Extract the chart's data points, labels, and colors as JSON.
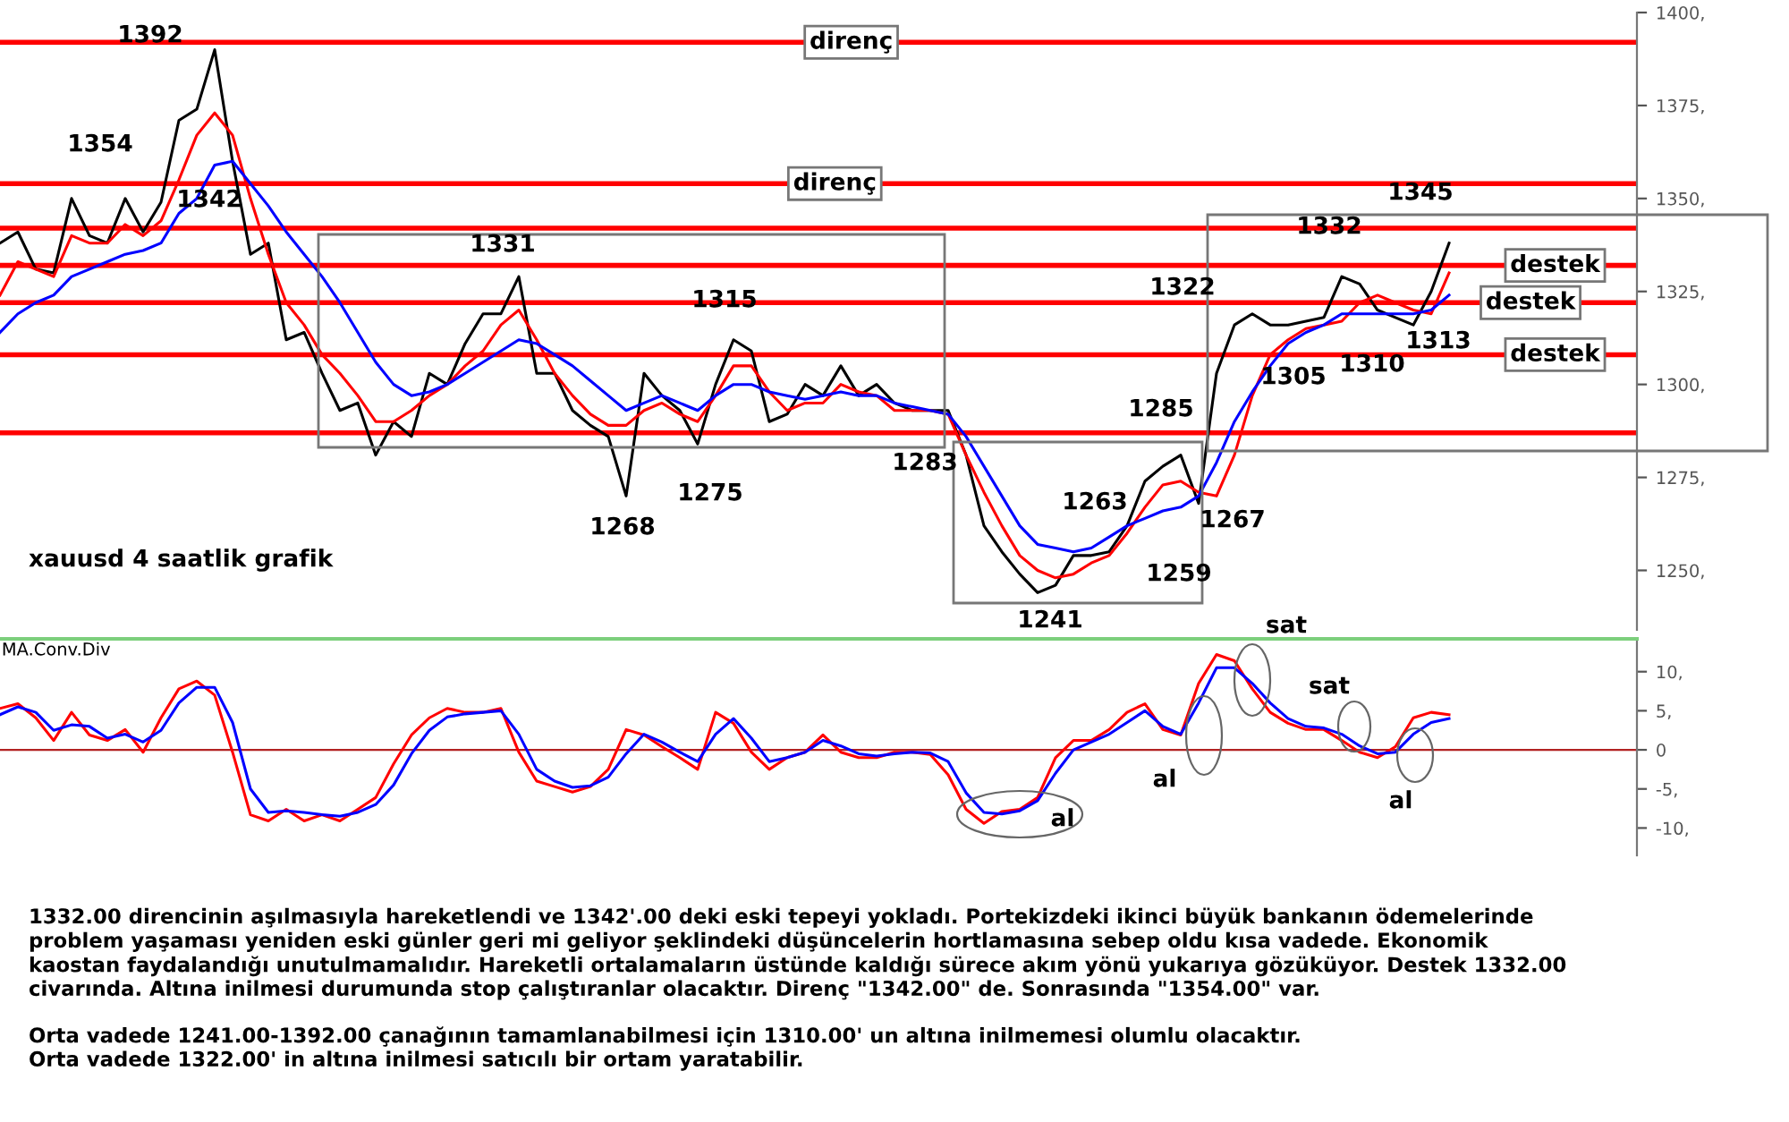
{
  "chart_data": [
    {
      "type": "line",
      "categories": [
        null,
        null,
        null,
        null,
        null,
        null,
        null,
        null,
        null,
        null,
        null,
        null,
        null,
        null,
        null,
        null,
        null,
        null,
        null,
        null,
        null,
        null,
        null,
        null,
        null,
        null,
        null,
        null,
        null,
        null,
        null,
        null,
        null,
        null,
        null,
        null,
        null,
        null,
        null,
        null,
        null,
        null,
        null,
        null,
        null,
        null,
        null,
        null,
        null,
        null,
        null,
        null,
        null,
        null,
        null,
        null,
        null,
        null,
        null,
        null,
        null,
        null,
        null,
        null,
        null,
        null,
        null,
        null,
        null,
        null,
        null,
        null,
        null,
        null,
        null,
        null,
        null,
        null,
        null,
        null,
        null,
        null,
        null,
        null,
        null,
        null,
        null,
        null,
        null,
        null,
        null,
        null
      ],
      "series": [
        {
          "color": "#000000",
          "values": [
            1338,
            1341,
            1331,
            1330,
            1350,
            1340,
            1338,
            1350,
            1341,
            1349,
            1371,
            1374,
            1390,
            1360,
            1335,
            1338,
            1312,
            1314,
            1303,
            1293,
            1295,
            1281,
            1290,
            1286,
            1303,
            1300,
            1311,
            1319,
            1319,
            1329,
            1303,
            1303,
            1293,
            1289,
            1286,
            1270,
            1303,
            1297,
            1293,
            1284,
            1300,
            1312,
            1309,
            1290,
            1292,
            1300,
            1297,
            1305,
            1297,
            1300,
            1295,
            1293,
            1293,
            1293,
            1281,
            1262,
            1255,
            1249,
            1244,
            1246,
            1254,
            1254,
            1255,
            1262,
            1274,
            1278,
            1281,
            1268,
            1303,
            1316,
            1319,
            1316,
            1316,
            1317,
            1318,
            1329,
            1327,
            1320,
            1318,
            1316,
            1325,
            1338,
            null,
            null,
            null,
            null,
            null,
            null,
            null,
            null,
            null,
            null
          ]
        },
        {
          "color": "#ff0000",
          "values": [
            1324,
            1333,
            1331,
            1329,
            1340,
            1338,
            1338,
            1343,
            1340,
            1344,
            1355,
            1367,
            1373,
            1367,
            1350,
            1335,
            1322,
            1316,
            1308,
            1303,
            1297,
            1290,
            1290,
            1293,
            1297,
            1300,
            1305,
            1309,
            1316,
            1320,
            1312,
            1303,
            1297,
            1292,
            1289,
            1289,
            1293,
            1295,
            1292,
            1290,
            1297,
            1305,
            1305,
            1298,
            1293,
            1295,
            1295,
            1300,
            1298,
            1297,
            1293,
            1293,
            1293,
            1292,
            1281,
            1271,
            1262,
            1254,
            1250,
            1248,
            1249,
            1252,
            1254,
            1260,
            1267,
            1273,
            1274,
            1271,
            1270,
            1281,
            1297,
            1308,
            1312,
            1315,
            1316,
            1317,
            1322,
            1324,
            1322,
            1320,
            1319,
            1330,
            null,
            null,
            null,
            null,
            null,
            null,
            null,
            null,
            null,
            null
          ]
        },
        {
          "color": "#0000ff",
          "values": [
            1314,
            1319,
            1322,
            1324,
            1329,
            1331,
            1333,
            1335,
            1336,
            1338,
            1346,
            1350,
            1359,
            1360,
            1354,
            1348,
            1341,
            1335,
            1329,
            1322,
            1314,
            1306,
            1300,
            1297,
            1298,
            1300,
            1303,
            1306,
            1309,
            1312,
            1311,
            1308,
            1305,
            1301,
            1297,
            1293,
            1295,
            1297,
            1295,
            1293,
            1297,
            1300,
            1300,
            1298,
            1297,
            1296,
            1297,
            1298,
            1297,
            1297,
            1295,
            1294,
            1293,
            1292,
            1286,
            1278,
            1270,
            1262,
            1257,
            1256,
            1255,
            1256,
            1259,
            1262,
            1264,
            1266,
            1267,
            1270,
            1279,
            1290,
            1298,
            1305,
            1311,
            1314,
            1316,
            1319,
            1319,
            1319,
            1319,
            1319,
            1320,
            1324,
            null,
            null,
            null,
            null,
            null,
            null,
            null,
            null,
            null,
            null
          ]
        }
      ],
      "ylim": [
        1234,
        1400
      ],
      "yticks": [
        {
          "value": 1250,
          "label": "1250,"
        },
        {
          "value": 1275,
          "label": "1275,"
        },
        {
          "value": 1300,
          "label": "1300,"
        },
        {
          "value": 1325,
          "label": "1325,"
        },
        {
          "value": 1350,
          "label": "1350,"
        },
        {
          "value": 1375,
          "label": "1375,"
        },
        {
          "value": 1400,
          "label": "1400,"
        }
      ],
      "tick_labels": "y",
      "grid": false,
      "ref_lines": [
        {
          "axis": "y",
          "value": 1392,
          "label": "direnç",
          "color": "#ff0000"
        },
        {
          "axis": "y",
          "value": 1354,
          "label": "direnç",
          "color": "#ff0000"
        },
        {
          "axis": "y",
          "value": 1342,
          "color": "#ff0000"
        },
        {
          "axis": "y",
          "value": 1332,
          "label": "destek",
          "color": "#ff0000"
        },
        {
          "axis": "y",
          "value": 1322,
          "label": "destek",
          "color": "#ff0000"
        },
        {
          "axis": "y",
          "value": 1308,
          "label": "destek",
          "color": "#ff0000"
        },
        {
          "axis": "y",
          "value": 1287,
          "color": "#ff0000"
        }
      ],
      "annotations": [
        "1392",
        "1354",
        "1342",
        "1331",
        "1315",
        "1268",
        "1275",
        "1283",
        "1241",
        "1263",
        "1285",
        "1259",
        "1267",
        "1322",
        "1332",
        "1305",
        "1310",
        "1313",
        "1345",
        "xauusd 4 saatlik grafik",
        "1332.00 direncinin aşılmasıyla hareketlendi ve 1342'.00 deki eski tepeyi yokladı. Portekizdeki ikinci büyük bankanın ödemelerinde\nproblem yaşaması yeniden eski günler geri mi geliyor şeklindeki düşüncelerin hortlamasına sebep oldu kısa vadede. Ekonomik\nkaostan faydalandığı unutulmamalıdır. Hareketli ortalamaların üstünde kaldığı sürece akım yönü yukarıya gözüküyor. Destek 1332.00\ncivarında. Altına inilmesi durumunda stop çalıştıranlar olacaktır. Direnç \"1342.00\" de. Sonrasında \"1354.00\" var.",
        "Orta vadede 1241.00-1392.00 çanağının tamamlanabilmesi için 1310.00' un altına inilmemesi olumlu olacaktır.\nOrta vadede 1322.00' in altına inilmesi satıcılı bir ortam yaratabilir."
      ]
    },
    {
      "type": "line",
      "title": "MA.Conv.Div",
      "categories": [
        null,
        null,
        null,
        null,
        null,
        null,
        null,
        null,
        null,
        null,
        null,
        null,
        null,
        null,
        null,
        null,
        null,
        null,
        null,
        null,
        null,
        null,
        null,
        null,
        null,
        null,
        null,
        null,
        null,
        null,
        null,
        null,
        null,
        null,
        null,
        null,
        null,
        null,
        null,
        null,
        null,
        null,
        null,
        null,
        null,
        null,
        null,
        null,
        null,
        null,
        null,
        null,
        null,
        null,
        null,
        null,
        null,
        null,
        null,
        null,
        null,
        null,
        null,
        null,
        null,
        null,
        null,
        null,
        null,
        null,
        null,
        null,
        null,
        null,
        null,
        null,
        null,
        null,
        null,
        null,
        null,
        null,
        null,
        null,
        null,
        null,
        null,
        null,
        null,
        null,
        null,
        null
      ],
      "series": [
        {
          "color": "#ff0000",
          "values": [
            5.3,
            5.9,
            4.1,
            1.2,
            4.8,
            1.9,
            1.2,
            2.6,
            -0.3,
            4.1,
            7.8,
            8.8,
            7.0,
            -0.3,
            -8.3,
            -9.1,
            -7.6,
            -9.1,
            -8.3,
            -9.1,
            -7.6,
            -6.1,
            -1.8,
            1.9,
            4.1,
            5.3,
            4.8,
            4.8,
            5.3,
            -0.3,
            -4.0,
            -4.7,
            -5.4,
            -4.7,
            -2.5,
            2.6,
            1.9,
            0.4,
            -1.0,
            -2.5,
            4.8,
            3.4,
            -0.3,
            -2.5,
            -1.0,
            -0.3,
            1.9,
            -0.3,
            -1.0,
            -1.0,
            -0.3,
            -0.3,
            -0.6,
            -3.2,
            -7.6,
            -9.4,
            -7.9,
            -7.6,
            -6.1,
            -1.0,
            1.2,
            1.2,
            2.6,
            4.8,
            5.9,
            2.6,
            1.9,
            8.5,
            12.2,
            11.4,
            7.8,
            4.8,
            3.4,
            2.6,
            2.6,
            1.2,
            -0.3,
            -1.0,
            0.4,
            4.1,
            4.8,
            4.5,
            null,
            null,
            null,
            null,
            null,
            null,
            null,
            null,
            null,
            null
          ]
        },
        {
          "color": "#0000ff",
          "values": [
            4.5,
            5.5,
            4.8,
            2.5,
            3.2,
            3.0,
            1.5,
            2.0,
            1.0,
            2.5,
            6.0,
            8.0,
            8.0,
            3.5,
            -5.0,
            -8.0,
            -7.8,
            -8.0,
            -8.3,
            -8.5,
            -8.0,
            -7.0,
            -4.5,
            -0.5,
            2.5,
            4.2,
            4.6,
            4.8,
            5.0,
            2.0,
            -2.5,
            -4.0,
            -4.8,
            -4.6,
            -3.5,
            -0.5,
            2.0,
            1.0,
            -0.3,
            -1.5,
            2.0,
            4.0,
            1.5,
            -1.5,
            -1.0,
            -0.3,
            1.2,
            0.5,
            -0.5,
            -0.8,
            -0.5,
            -0.3,
            -0.4,
            -1.5,
            -5.5,
            -8.0,
            -8.2,
            -7.8,
            -6.5,
            -3.0,
            0.0,
            1.0,
            2.0,
            3.5,
            5.0,
            3.0,
            2.0,
            6.0,
            10.5,
            10.5,
            8.5,
            6.0,
            4.0,
            3.0,
            2.8,
            2.0,
            0.5,
            -0.5,
            -0.3,
            2.0,
            3.5,
            4.0,
            null,
            null,
            null,
            null,
            null,
            null,
            null,
            null,
            null,
            null
          ]
        }
      ],
      "ylim": [
        -13.5,
        14.2
      ],
      "yticks": [
        {
          "value": 10,
          "label": "10,"
        },
        {
          "value": 5,
          "label": "5,"
        },
        0,
        {
          "value": -5,
          "label": "-5,"
        },
        {
          "value": -10,
          "label": "-10,"
        }
      ],
      "tick_labels": "y",
      "grid": false,
      "ref_lines": [
        {
          "axis": "y",
          "value": 0,
          "color": "#b22222"
        }
      ],
      "annotations": [
        "sat",
        "sat",
        "al",
        "al",
        "al"
      ]
    }
  ]
}
